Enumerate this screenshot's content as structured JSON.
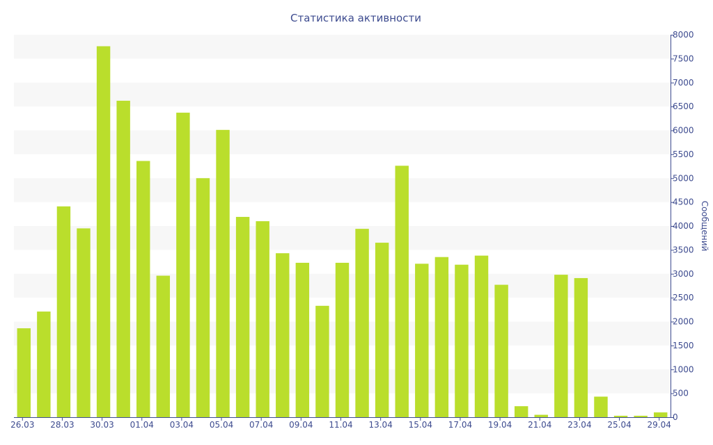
{
  "colors": {
    "bar": "#bade2c",
    "band": "#f7f7f7",
    "axis": "#3d4b8f",
    "text": "#3d4b8f"
  },
  "chart_data": {
    "type": "bar",
    "title": "Статистика активности",
    "xlabel": "",
    "ylabel": "Сообщений",
    "ylim": [
      0,
      8000
    ],
    "y_ticks": [
      0,
      500,
      1000,
      1500,
      2000,
      2500,
      3000,
      3500,
      4000,
      4500,
      5000,
      5500,
      6000,
      6500,
      7000,
      7500,
      8000
    ],
    "y_axis_position": "right",
    "grid": "alternating horizontal bands",
    "categories": [
      "26.03",
      "27.03",
      "28.03",
      "29.03",
      "30.03",
      "31.03",
      "01.04",
      "02.04",
      "03.04",
      "04.04",
      "05.04",
      "06.04",
      "07.04",
      "08.04",
      "09.04",
      "10.04",
      "11.04",
      "12.04",
      "13.04",
      "14.04",
      "15.04",
      "16.04",
      "17.04",
      "18.04",
      "19.04",
      "20.04",
      "21.04",
      "22.04",
      "23.04",
      "24.04",
      "25.04",
      "26.04",
      "29.04"
    ],
    "x_tick_labels": [
      "26.03",
      "28.03",
      "30.03",
      "01.04",
      "03.04",
      "05.04",
      "07.04",
      "09.04",
      "11.04",
      "13.04",
      "15.04",
      "17.04",
      "19.04",
      "21.04",
      "23.04",
      "25.04",
      "29.04"
    ],
    "values": [
      1860,
      2210,
      4410,
      3950,
      7760,
      6620,
      5360,
      2960,
      6370,
      5000,
      6010,
      4190,
      4100,
      3430,
      3230,
      2330,
      3230,
      3940,
      3650,
      5260,
      3210,
      3350,
      3190,
      3380,
      2770,
      230,
      50,
      2980,
      2910,
      430,
      30,
      30,
      100
    ]
  }
}
